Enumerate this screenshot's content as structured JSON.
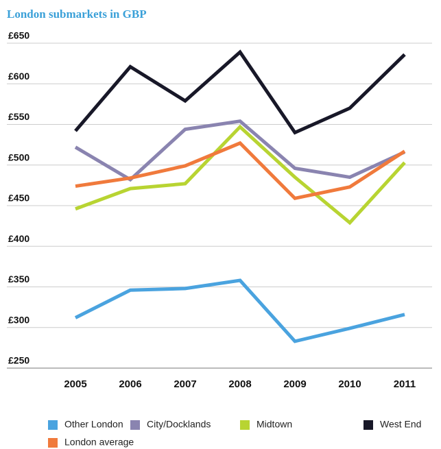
{
  "chart_data": {
    "type": "line",
    "subtitle": "London submarkets in GBP",
    "categories": [
      "2005",
      "2006",
      "2007",
      "2008",
      "2009",
      "2010",
      "2011"
    ],
    "series": [
      {
        "name": "Other London",
        "color": "#4aa3df",
        "values": [
          312,
          346,
          348,
          358,
          283,
          299,
          316
        ]
      },
      {
        "name": "City/Docklands",
        "color": "#8a84b0",
        "values": [
          522,
          482,
          544,
          554,
          496,
          485,
          516
        ]
      },
      {
        "name": "Midtown",
        "color": "#b8d432",
        "values": [
          446,
          471,
          477,
          547,
          485,
          429,
          503
        ]
      },
      {
        "name": "West End",
        "color": "#181828",
        "values": [
          542,
          621,
          579,
          639,
          540,
          570,
          636
        ]
      },
      {
        "name": "London average",
        "color": "#f07a3c",
        "values": [
          474,
          484,
          499,
          527,
          459,
          473,
          517
        ]
      }
    ],
    "ylim": [
      250,
      650
    ],
    "yticks": [
      {
        "value": 250,
        "label": "£250"
      },
      {
        "value": 300,
        "label": "£300"
      },
      {
        "value": 350,
        "label": "£350"
      },
      {
        "value": 400,
        "label": "£400"
      },
      {
        "value": 450,
        "label": "£450"
      },
      {
        "value": 500,
        "label": "£500"
      },
      {
        "value": 550,
        "label": "£550"
      },
      {
        "value": 600,
        "label": "£600"
      },
      {
        "value": 650,
        "label": "£650"
      }
    ],
    "grid": true,
    "legend": "bottom"
  }
}
